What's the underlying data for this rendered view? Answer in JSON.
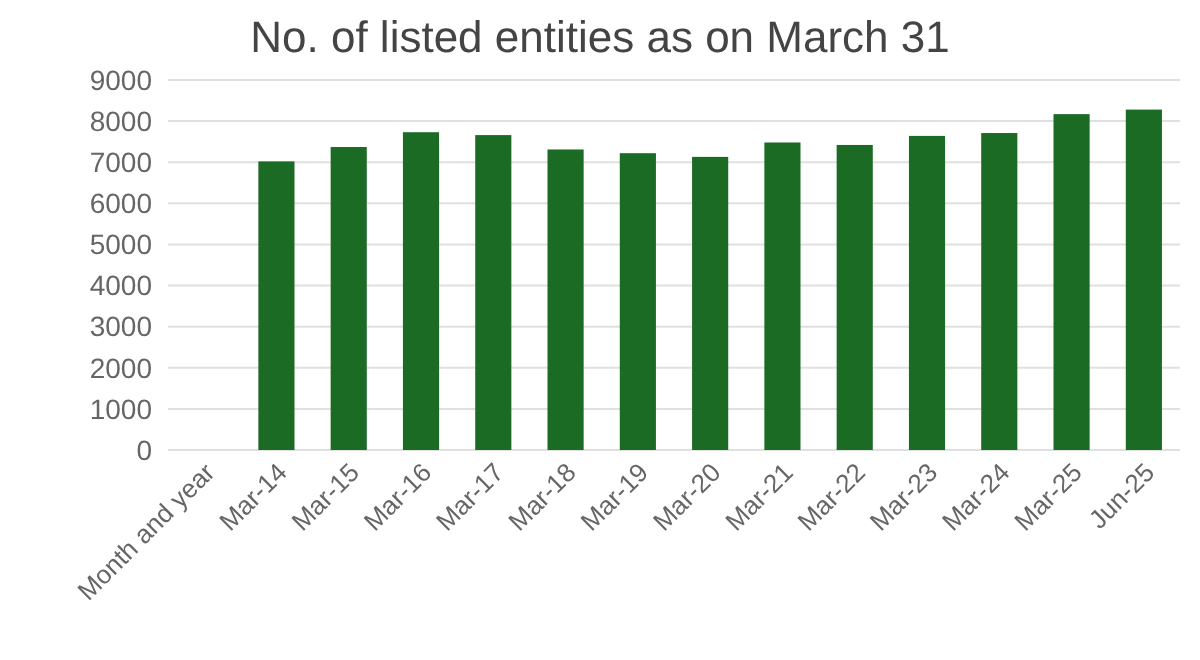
{
  "chart_data": {
    "type": "bar",
    "title": "No. of listed entities as on March 31",
    "categories": [
      "Month and year",
      "Mar-14",
      "Mar-15",
      "Mar-16",
      "Mar-17",
      "Mar-18",
      "Mar-19",
      "Mar-20",
      "Mar-21",
      "Mar-22",
      "Mar-23",
      "Mar-24",
      "Mar-25",
      "Jun-25"
    ],
    "values": [
      null,
      7020,
      7370,
      7730,
      7660,
      7310,
      7220,
      7130,
      7480,
      7420,
      7640,
      7710,
      8170,
      8280
    ],
    "color": "#1b6b25",
    "ylim": [
      0,
      9000
    ],
    "yticks": [
      0,
      1000,
      2000,
      3000,
      4000,
      5000,
      6000,
      7000,
      8000,
      9000
    ],
    "grid": "y"
  }
}
